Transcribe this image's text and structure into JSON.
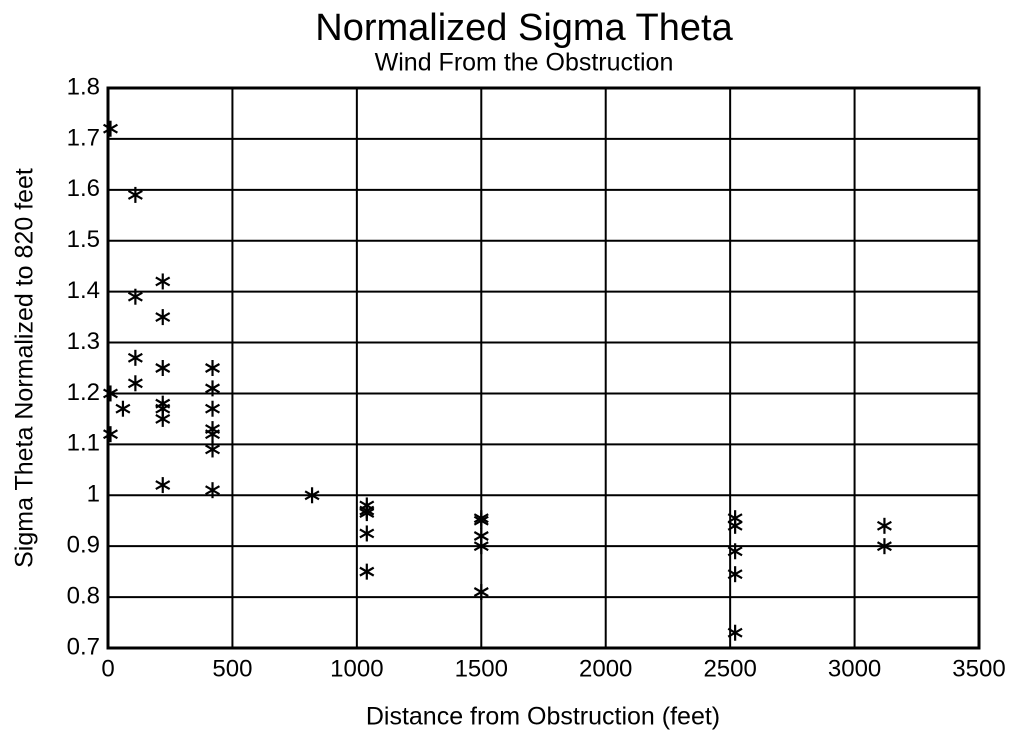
{
  "chart_data": {
    "type": "scatter",
    "title": "Normalized Sigma Theta",
    "subtitle": "Wind From the Obstruction",
    "x_label": "Distance from Obstruction (feet)",
    "y_label": "Sigma Theta Normalized to 820 feet",
    "series": [
      {
        "color": "#000000",
        "x": [
          10,
          10,
          10,
          60,
          110,
          110,
          110,
          110,
          220,
          220,
          220,
          220,
          220,
          220,
          220,
          420,
          420,
          420,
          420,
          420,
          420,
          420,
          820,
          1040,
          1040,
          1040,
          1040,
          1040,
          1500,
          1500,
          1500,
          1500,
          1500,
          2520,
          2520,
          2520,
          2520,
          2520,
          3120,
          3120
        ],
        "values": [
          1.72,
          1.2,
          1.12,
          1.17,
          1.59,
          1.39,
          1.27,
          1.22,
          1.42,
          1.35,
          1.25,
          1.18,
          1.17,
          1.15,
          1.02,
          1.25,
          1.21,
          1.17,
          1.13,
          1.12,
          1.09,
          1.01,
          1.0,
          0.98,
          0.97,
          0.965,
          0.925,
          0.85,
          0.955,
          0.95,
          0.92,
          0.9,
          0.81,
          0.955,
          0.94,
          0.89,
          0.845,
          0.73,
          0.94,
          0.9
        ]
      }
    ],
    "xlim": [
      0,
      3500
    ],
    "xticks": [
      0,
      500,
      1000,
      1500,
      2000,
      2500,
      3000,
      3500
    ],
    "ylim": [
      0.7,
      1.8
    ],
    "yticks": [
      0.7,
      0.8,
      0.9,
      1,
      1.1,
      1.2,
      1.3,
      1.4,
      1.5,
      1.6,
      1.7,
      1.8
    ],
    "grid": true
  }
}
